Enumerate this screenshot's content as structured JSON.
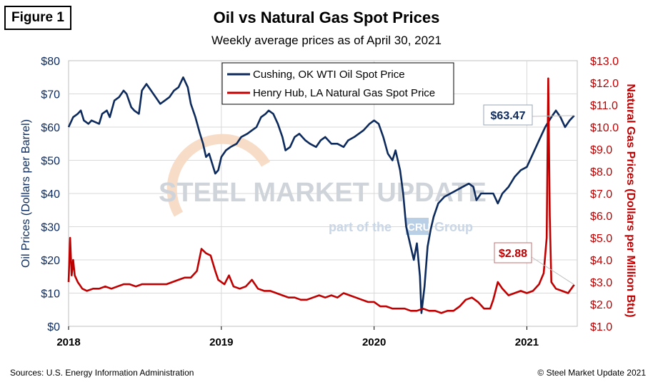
{
  "figure_label": "Figure 1",
  "footer": {
    "source": "Sources: U.S. Energy Information Administration",
    "copyright": "© Steel Market Update 2021"
  },
  "watermark": {
    "brand": "STEEL MARKET UPDATE",
    "tagline_prefix": "part of the",
    "tagline_mark": "CRU",
    "tagline_suffix": "Group"
  },
  "colors": {
    "oil": "#0d2a5c",
    "gas": "#c00000",
    "grid": "#d9d9d9",
    "plot_bg": "#ffffff"
  },
  "chart_data": {
    "type": "line",
    "title": "Oil vs Natural Gas Spot Prices",
    "subtitle": "Weekly average prices as of April 30, 2021",
    "ylabel": "Oil Prices (Dollars per Barrel)",
    "y2label": "Natural Gas Prices (Dollars per Million Btu)",
    "ylim": [
      0,
      80
    ],
    "y2lim": [
      1.0,
      13.0
    ],
    "xlim": [
      2018.0,
      2021.33
    ],
    "yticks": [
      "$0",
      "$10",
      "$20",
      "$30",
      "$40",
      "$50",
      "$60",
      "$70",
      "$80"
    ],
    "y2ticks": [
      "$1.0",
      "$2.0",
      "$3.0",
      "$4.0",
      "$5.0",
      "$6.0",
      "$7.0",
      "$8.0",
      "$9.0",
      "$10.0",
      "$11.0",
      "$12.0",
      "$13.0"
    ],
    "xticks": [
      {
        "value": 2018,
        "label": "2018"
      },
      {
        "value": 2019,
        "label": "2019"
      },
      {
        "value": 2020,
        "label": "2020"
      },
      {
        "value": 2021,
        "label": "2021"
      }
    ],
    "legend_position": "top-center",
    "series": [
      {
        "name": "Cushing, OK WTI Oil Spot Price",
        "axis": "left",
        "points": [
          [
            2018.0,
            60
          ],
          [
            2018.03,
            63
          ],
          [
            2018.06,
            64
          ],
          [
            2018.08,
            65
          ],
          [
            2018.1,
            62
          ],
          [
            2018.13,
            61
          ],
          [
            2018.15,
            62
          ],
          [
            2018.2,
            61
          ],
          [
            2018.22,
            64
          ],
          [
            2018.25,
            65
          ],
          [
            2018.27,
            63
          ],
          [
            2018.3,
            68
          ],
          [
            2018.33,
            69
          ],
          [
            2018.36,
            71
          ],
          [
            2018.38,
            70
          ],
          [
            2018.41,
            66
          ],
          [
            2018.43,
            65
          ],
          [
            2018.46,
            64
          ],
          [
            2018.48,
            71
          ],
          [
            2018.51,
            73
          ],
          [
            2018.54,
            71
          ],
          [
            2018.57,
            69
          ],
          [
            2018.6,
            67
          ],
          [
            2018.63,
            68
          ],
          [
            2018.66,
            69
          ],
          [
            2018.69,
            71
          ],
          [
            2018.72,
            72
          ],
          [
            2018.75,
            75
          ],
          [
            2018.78,
            72
          ],
          [
            2018.8,
            67
          ],
          [
            2018.83,
            63
          ],
          [
            2018.86,
            58
          ],
          [
            2018.88,
            55
          ],
          [
            2018.9,
            51
          ],
          [
            2018.92,
            52
          ],
          [
            2018.94,
            49
          ],
          [
            2018.96,
            46
          ],
          [
            2018.98,
            47
          ],
          [
            2019.0,
            51
          ],
          [
            2019.03,
            53
          ],
          [
            2019.06,
            54
          ],
          [
            2019.1,
            55
          ],
          [
            2019.13,
            57
          ],
          [
            2019.17,
            58
          ],
          [
            2019.2,
            59
          ],
          [
            2019.23,
            60
          ],
          [
            2019.26,
            63
          ],
          [
            2019.29,
            64
          ],
          [
            2019.31,
            65
          ],
          [
            2019.34,
            64
          ],
          [
            2019.37,
            61
          ],
          [
            2019.4,
            57
          ],
          [
            2019.42,
            53
          ],
          [
            2019.45,
            54
          ],
          [
            2019.48,
            57
          ],
          [
            2019.51,
            58
          ],
          [
            2019.55,
            56
          ],
          [
            2019.58,
            55
          ],
          [
            2019.62,
            54
          ],
          [
            2019.65,
            56
          ],
          [
            2019.68,
            57
          ],
          [
            2019.72,
            55
          ],
          [
            2019.76,
            55
          ],
          [
            2019.8,
            54
          ],
          [
            2019.83,
            56
          ],
          [
            2019.87,
            57
          ],
          [
            2019.9,
            58
          ],
          [
            2019.93,
            59
          ],
          [
            2019.97,
            61
          ],
          [
            2020.0,
            62
          ],
          [
            2020.03,
            61
          ],
          [
            2020.06,
            57
          ],
          [
            2020.09,
            52
          ],
          [
            2020.12,
            50
          ],
          [
            2020.14,
            53
          ],
          [
            2020.17,
            47
          ],
          [
            2020.19,
            40
          ],
          [
            2020.21,
            30
          ],
          [
            2020.24,
            24
          ],
          [
            2020.26,
            20
          ],
          [
            2020.28,
            25
          ],
          [
            2020.3,
            15
          ],
          [
            2020.31,
            4
          ],
          [
            2020.33,
            12
          ],
          [
            2020.35,
            24
          ],
          [
            2020.37,
            29
          ],
          [
            2020.39,
            33
          ],
          [
            2020.42,
            37
          ],
          [
            2020.46,
            39
          ],
          [
            2020.5,
            40
          ],
          [
            2020.54,
            41
          ],
          [
            2020.58,
            42
          ],
          [
            2020.62,
            43
          ],
          [
            2020.65,
            42
          ],
          [
            2020.67,
            38
          ],
          [
            2020.7,
            40
          ],
          [
            2020.74,
            40
          ],
          [
            2020.78,
            40
          ],
          [
            2020.81,
            37
          ],
          [
            2020.84,
            40
          ],
          [
            2020.88,
            42
          ],
          [
            2020.92,
            45
          ],
          [
            2020.96,
            47
          ],
          [
            2021.0,
            48
          ],
          [
            2021.04,
            52
          ],
          [
            2021.08,
            56
          ],
          [
            2021.12,
            60
          ],
          [
            2021.16,
            63
          ],
          [
            2021.19,
            65
          ],
          [
            2021.22,
            63
          ],
          [
            2021.25,
            60
          ],
          [
            2021.28,
            62
          ],
          [
            2021.31,
            63.47
          ]
        ]
      },
      {
        "name": "Henry Hub, LA Natural Gas Spot Price",
        "axis": "right",
        "points": [
          [
            2018.0,
            3.0
          ],
          [
            2018.01,
            5.0
          ],
          [
            2018.02,
            3.3
          ],
          [
            2018.03,
            4.0
          ],
          [
            2018.04,
            3.3
          ],
          [
            2018.06,
            3.0
          ],
          [
            2018.09,
            2.7
          ],
          [
            2018.12,
            2.6
          ],
          [
            2018.16,
            2.7
          ],
          [
            2018.2,
            2.7
          ],
          [
            2018.24,
            2.8
          ],
          [
            2018.28,
            2.7
          ],
          [
            2018.32,
            2.8
          ],
          [
            2018.36,
            2.9
          ],
          [
            2018.4,
            2.9
          ],
          [
            2018.44,
            2.8
          ],
          [
            2018.48,
            2.9
          ],
          [
            2018.52,
            2.9
          ],
          [
            2018.56,
            2.9
          ],
          [
            2018.6,
            2.9
          ],
          [
            2018.64,
            2.9
          ],
          [
            2018.68,
            3.0
          ],
          [
            2018.72,
            3.1
          ],
          [
            2018.76,
            3.2
          ],
          [
            2018.8,
            3.2
          ],
          [
            2018.84,
            3.5
          ],
          [
            2018.87,
            4.5
          ],
          [
            2018.9,
            4.3
          ],
          [
            2018.93,
            4.2
          ],
          [
            2018.96,
            3.5
          ],
          [
            2018.98,
            3.1
          ],
          [
            2019.02,
            2.9
          ],
          [
            2019.05,
            3.3
          ],
          [
            2019.08,
            2.8
          ],
          [
            2019.12,
            2.7
          ],
          [
            2019.16,
            2.8
          ],
          [
            2019.2,
            3.1
          ],
          [
            2019.24,
            2.7
          ],
          [
            2019.28,
            2.6
          ],
          [
            2019.32,
            2.6
          ],
          [
            2019.36,
            2.5
          ],
          [
            2019.4,
            2.4
          ],
          [
            2019.44,
            2.3
          ],
          [
            2019.48,
            2.3
          ],
          [
            2019.52,
            2.2
          ],
          [
            2019.56,
            2.2
          ],
          [
            2019.6,
            2.3
          ],
          [
            2019.64,
            2.4
          ],
          [
            2019.68,
            2.3
          ],
          [
            2019.72,
            2.4
          ],
          [
            2019.76,
            2.3
          ],
          [
            2019.8,
            2.5
          ],
          [
            2019.84,
            2.4
          ],
          [
            2019.88,
            2.3
          ],
          [
            2019.92,
            2.2
          ],
          [
            2019.96,
            2.1
          ],
          [
            2020.0,
            2.1
          ],
          [
            2020.04,
            1.9
          ],
          [
            2020.08,
            1.9
          ],
          [
            2020.12,
            1.8
          ],
          [
            2020.16,
            1.8
          ],
          [
            2020.2,
            1.8
          ],
          [
            2020.24,
            1.7
          ],
          [
            2020.28,
            1.7
          ],
          [
            2020.32,
            1.8
          ],
          [
            2020.36,
            1.7
          ],
          [
            2020.4,
            1.7
          ],
          [
            2020.44,
            1.6
          ],
          [
            2020.48,
            1.7
          ],
          [
            2020.52,
            1.7
          ],
          [
            2020.56,
            1.9
          ],
          [
            2020.6,
            2.2
          ],
          [
            2020.64,
            2.3
          ],
          [
            2020.68,
            2.1
          ],
          [
            2020.72,
            1.8
          ],
          [
            2020.76,
            1.8
          ],
          [
            2020.78,
            2.2
          ],
          [
            2020.81,
            3.0
          ],
          [
            2020.84,
            2.7
          ],
          [
            2020.88,
            2.4
          ],
          [
            2020.92,
            2.5
          ],
          [
            2020.96,
            2.6
          ],
          [
            2021.0,
            2.5
          ],
          [
            2021.04,
            2.6
          ],
          [
            2021.08,
            2.9
          ],
          [
            2021.11,
            3.4
          ],
          [
            2021.13,
            5.0
          ],
          [
            2021.14,
            12.2
          ],
          [
            2021.15,
            6.0
          ],
          [
            2021.16,
            3.0
          ],
          [
            2021.19,
            2.7
          ],
          [
            2021.23,
            2.6
          ],
          [
            2021.27,
            2.5
          ],
          [
            2021.31,
            2.88
          ]
        ]
      }
    ],
    "annotations": [
      {
        "text": "$63.47",
        "series": "Cushing, OK WTI Oil Spot Price"
      },
      {
        "text": "$2.88",
        "series": "Henry Hub, LA Natural Gas Spot Price"
      }
    ]
  }
}
